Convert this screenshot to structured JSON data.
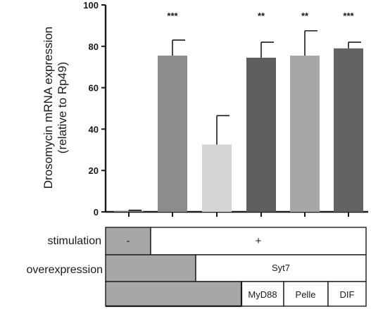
{
  "chart_data": {
    "type": "bar",
    "ylabel_line1": "Drosomycin mRNA expression",
    "ylabel_line2": "(relative to Rp49)",
    "ylim": [
      0,
      100
    ],
    "yticks": [
      "0",
      "20",
      "40",
      "60",
      "80",
      "100"
    ],
    "grid": false,
    "values": [
      0.5,
      75.5,
      32.5,
      74.5,
      75.5,
      79
    ],
    "errors": [
      0.3,
      7.5,
      14,
      7.5,
      12,
      3
    ],
    "significance": [
      "",
      "***",
      "",
      "**",
      "**",
      "***"
    ],
    "colors": [
      "#808080",
      "#8c8c8c",
      "#d4d4d4",
      "#5e5e5e",
      "#a7a7a9",
      "#636363"
    ]
  },
  "design_table": {
    "stimulation": {
      "label": "stimulation",
      "minus": "-",
      "plus": "+"
    },
    "overexpression": {
      "label": "overexpression",
      "syt7": "Syt7",
      "myd88": "MyD88",
      "pelle": "Pelle",
      "dif": "DIF"
    },
    "fill_color": "#a7a7a9"
  }
}
